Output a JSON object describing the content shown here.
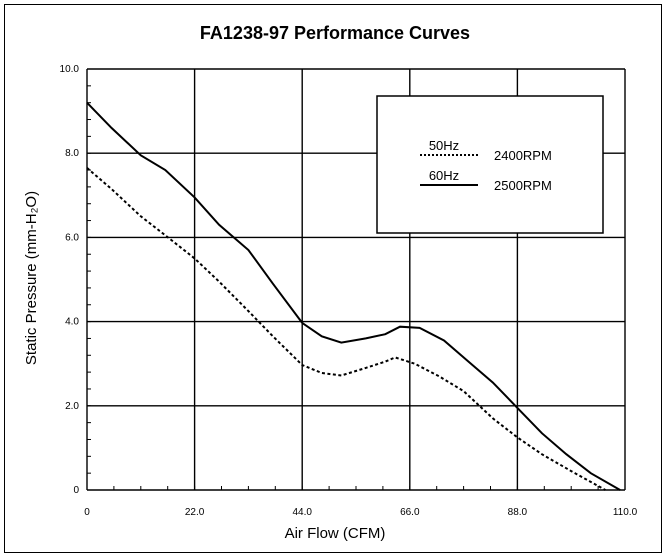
{
  "chart_data": {
    "type": "line",
    "title": "FA1238-97 Performance Curves",
    "xlabel": "Air Flow (CFM)",
    "ylabel": "Static Pressure (mm-H₂O)",
    "xlim": [
      0,
      110
    ],
    "ylim": [
      0,
      10
    ],
    "x_ticks": [
      {
        "value": 0,
        "label": "0"
      },
      {
        "value": 22,
        "label": "22.0"
      },
      {
        "value": 44,
        "label": "44.0"
      },
      {
        "value": 66,
        "label": "66.0"
      },
      {
        "value": 88,
        "label": "88.0"
      },
      {
        "value": 110,
        "label": "110.0"
      }
    ],
    "y_ticks": [
      {
        "value": 0,
        "label": "0"
      },
      {
        "value": 2,
        "label": "2.0"
      },
      {
        "value": 4,
        "label": "4.0"
      },
      {
        "value": 6,
        "label": "6.0"
      },
      {
        "value": 8,
        "label": "8.0"
      },
      {
        "value": 10,
        "label": "10.0"
      }
    ],
    "grid": true,
    "legend_position": "top-right",
    "series": [
      {
        "name": "2500RPM",
        "hz": "60Hz",
        "style": "solid",
        "points": [
          [
            0,
            9.2
          ],
          [
            5,
            8.6
          ],
          [
            11,
            7.95
          ],
          [
            16,
            7.6
          ],
          [
            22,
            6.95
          ],
          [
            27,
            6.3
          ],
          [
            33,
            5.7
          ],
          [
            38,
            4.9
          ],
          [
            44,
            3.97
          ],
          [
            48,
            3.65
          ],
          [
            52,
            3.5
          ],
          [
            57,
            3.6
          ],
          [
            61,
            3.7
          ],
          [
            64,
            3.88
          ],
          [
            68,
            3.85
          ],
          [
            73,
            3.55
          ],
          [
            78,
            3.05
          ],
          [
            83,
            2.55
          ],
          [
            88,
            1.95
          ],
          [
            93,
            1.35
          ],
          [
            98,
            0.85
          ],
          [
            103,
            0.4
          ],
          [
            109,
            0
          ]
        ]
      },
      {
        "name": "2400RPM",
        "hz": "50Hz",
        "style": "dotted",
        "points": [
          [
            0,
            7.65
          ],
          [
            5,
            7.15
          ],
          [
            11,
            6.5
          ],
          [
            16,
            6.05
          ],
          [
            22,
            5.5
          ],
          [
            27,
            4.95
          ],
          [
            33,
            4.25
          ],
          [
            38,
            3.65
          ],
          [
            44,
            2.97
          ],
          [
            48,
            2.78
          ],
          [
            52,
            2.72
          ],
          [
            57,
            2.9
          ],
          [
            61,
            3.05
          ],
          [
            63,
            3.15
          ],
          [
            67,
            3.0
          ],
          [
            72,
            2.7
          ],
          [
            77,
            2.35
          ],
          [
            83,
            1.7
          ],
          [
            88,
            1.25
          ],
          [
            93,
            0.85
          ],
          [
            99,
            0.45
          ],
          [
            106,
            0
          ]
        ]
      }
    ]
  },
  "colors": {
    "line": "#000000",
    "grid": "#000000",
    "background": "#ffffff"
  }
}
